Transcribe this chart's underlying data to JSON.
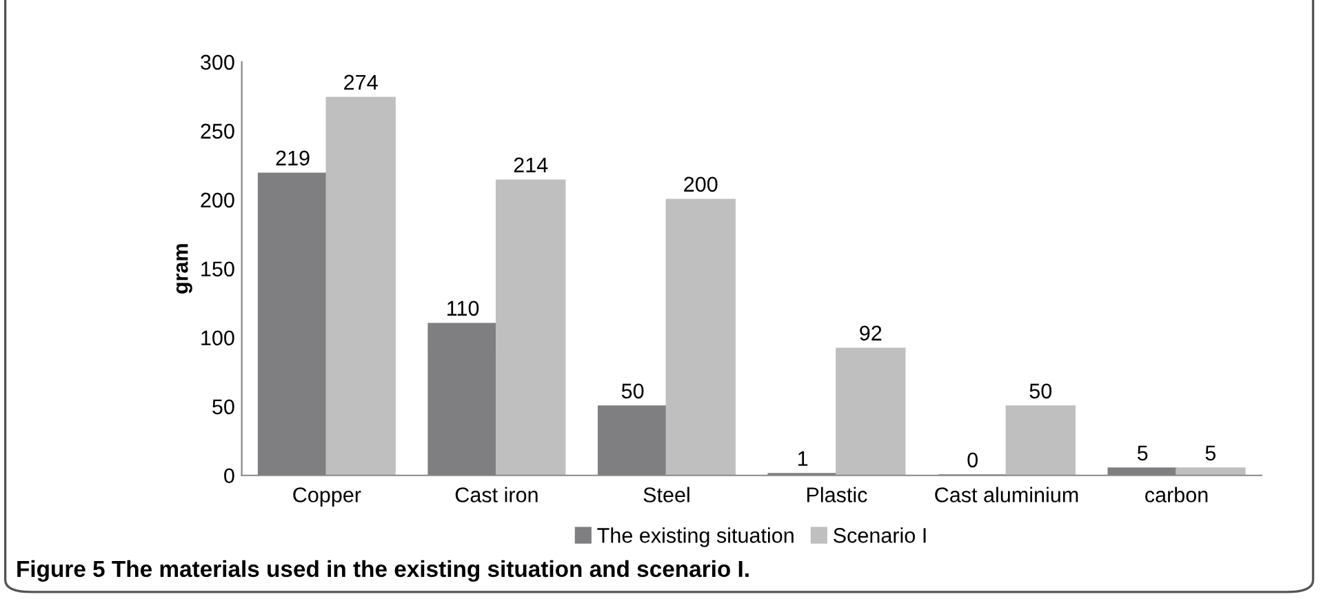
{
  "chart_data": {
    "type": "bar",
    "ylabel": "gram",
    "categories": [
      "Copper",
      "Cast iron",
      "Steel",
      "Plastic",
      "Cast aluminium",
      "carbon"
    ],
    "series": [
      {
        "name": "The existing situation",
        "color": "#7f7f81",
        "values": [
          219,
          110,
          50,
          1,
          0,
          5
        ]
      },
      {
        "name": "Scenario I",
        "color": "#bfbfbf",
        "values": [
          274,
          214,
          200,
          92,
          50,
          5
        ]
      }
    ],
    "ylim": [
      0,
      300
    ],
    "yticks": [
      0,
      50,
      100,
      150,
      200,
      250,
      300
    ],
    "data_labels": true,
    "grid": false,
    "legend": "bottom",
    "annotations": [
      "Figure 5 The materials used in the existing situation and scenario I."
    ]
  }
}
